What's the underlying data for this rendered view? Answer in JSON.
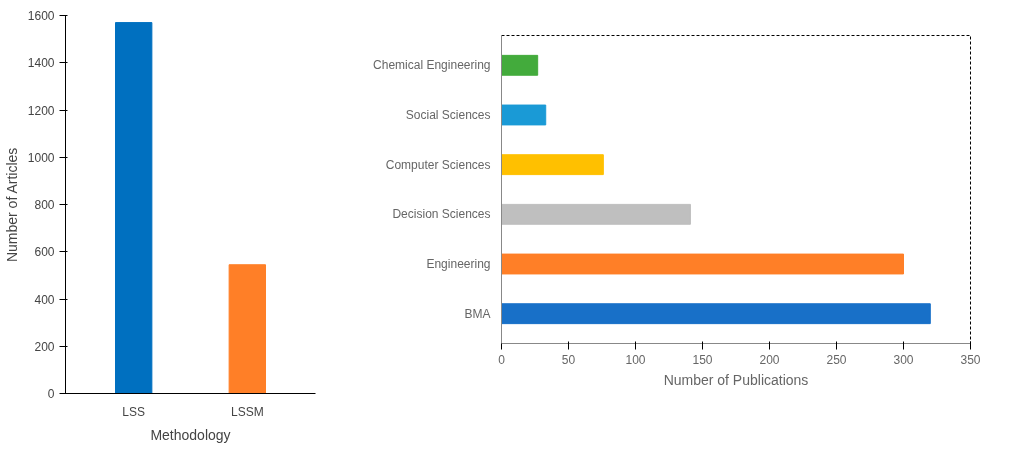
{
  "chart_data": [
    {
      "type": "bar",
      "xlabel": "Methodology",
      "ylabel": "Number of Articles",
      "categories": [
        "LSS",
        "LSSM"
      ],
      "values": [
        1570,
        545
      ],
      "colors": [
        "#0070c0",
        "#ff7f27"
      ],
      "ylim": [
        0,
        1600
      ],
      "yticks": [
        0,
        200,
        400,
        600,
        800,
        1000,
        1200,
        1400,
        1600
      ],
      "grid": false
    },
    {
      "type": "bar",
      "orientation": "horizontal",
      "xlabel": "Number of Publications",
      "categories": [
        "Chemical Engineering",
        "Social Sciences",
        "Computer Sciences",
        "Decision Sciences",
        "Engineering",
        "BMA"
      ],
      "values": [
        27,
        33,
        76,
        141,
        300,
        320
      ],
      "colors": [
        "#43ab3c",
        "#1a9ad6",
        "#ffc000",
        "#bfbfbf",
        "#ff7f27",
        "#1870c8"
      ],
      "xlim": [
        0,
        350
      ],
      "xticks": [
        0,
        50,
        100,
        150,
        200,
        250,
        300,
        350
      ],
      "grid": false
    }
  ]
}
